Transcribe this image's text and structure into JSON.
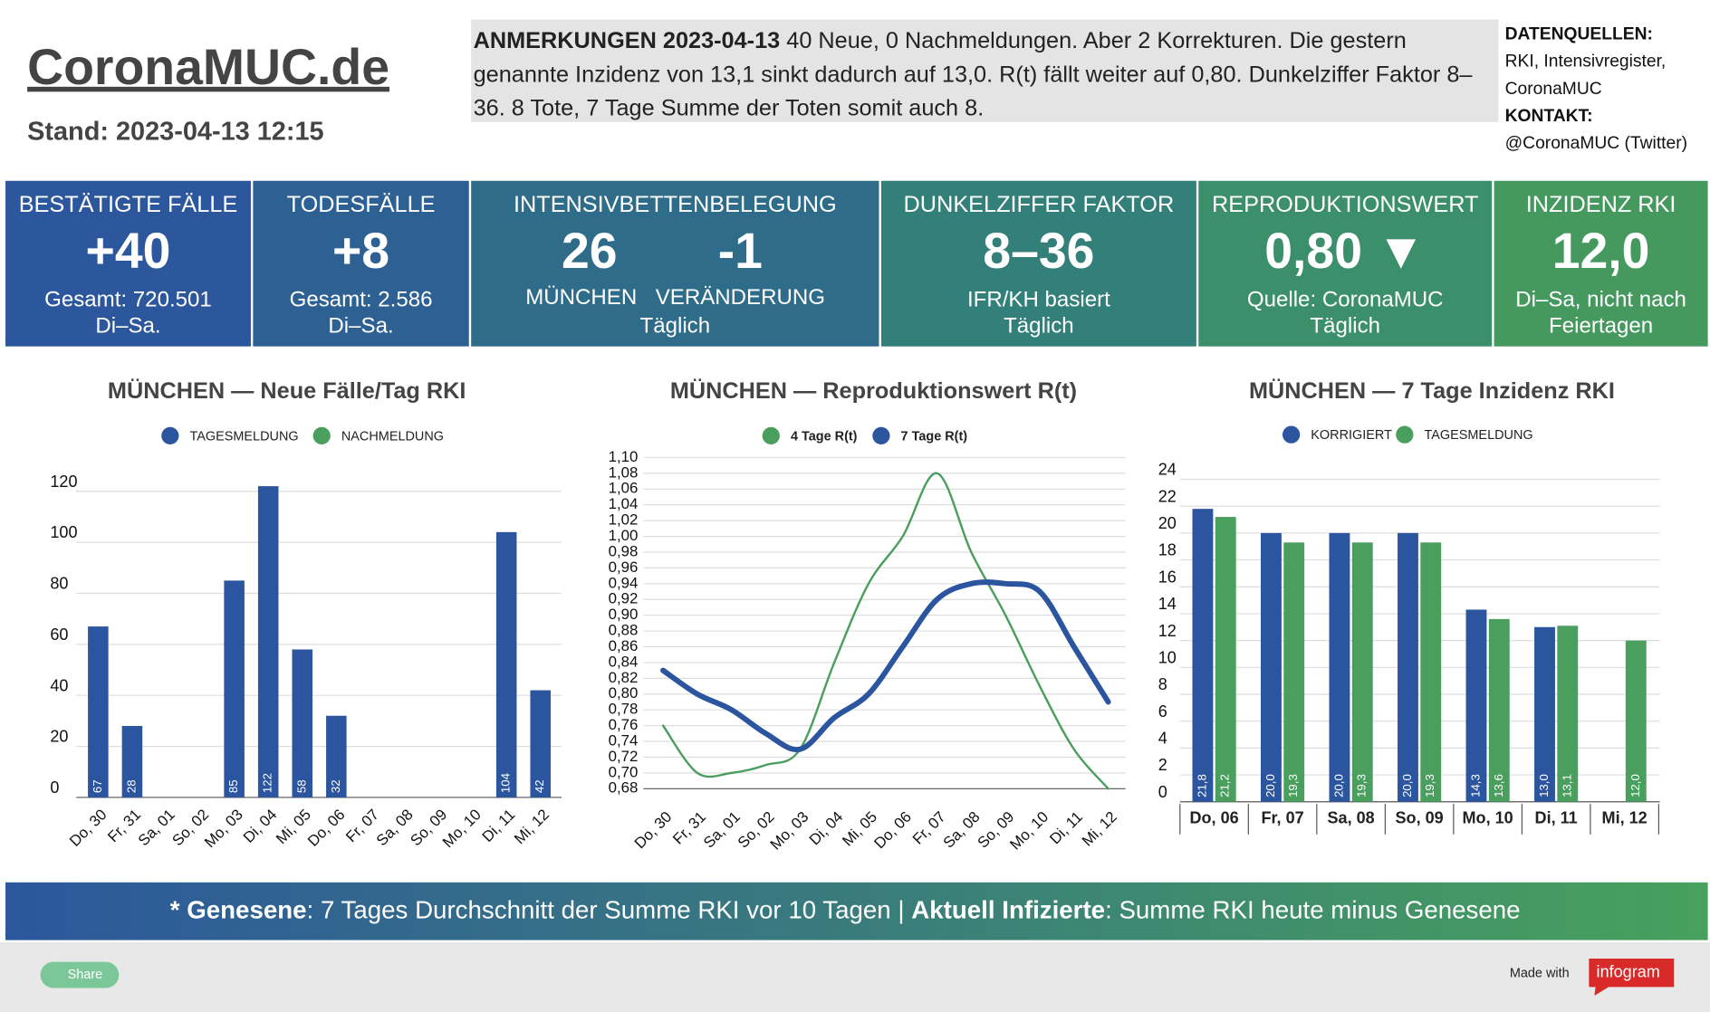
{
  "header": {
    "title": "CoronaMUC.de",
    "stand": "Stand: 2023-04-13 12:15"
  },
  "notes": {
    "label": "ANMERKUNGEN 2023-04-13",
    "text": "40 Neue, 0 Nachmeldungen. Aber 2 Korrekturen. Die gestern genannte Inzidenz von 13,1 sinkt dadurch auf 13,0. R(t) fällt weiter auf 0,80. Dunkelziffer Faktor 8–36. 8 Tote, 7 Tage Summe der Toten somit auch 8."
  },
  "sources": {
    "label": "DATENQUELLEN:",
    "lines": [
      "RKI, Intensivregister,",
      "CoronaMUC"
    ],
    "contact_label": "KONTAKT:",
    "contact": "@CoronaMUC (Twitter)"
  },
  "kpis": [
    {
      "title": "BESTÄTIGTE FÄLLE",
      "values": [
        "+40"
      ],
      "lines": [
        "Gesamt: 720.501",
        "Di–Sa."
      ]
    },
    {
      "title": "TODESFÄLLE",
      "values": [
        "+8"
      ],
      "lines": [
        "Gesamt: 2.586",
        "Di–Sa."
      ]
    },
    {
      "title": "INTENSIVBETTENBELEGUNG",
      "values": [
        "26",
        "-1"
      ],
      "labels": [
        "MÜNCHEN",
        "VERÄNDERUNG"
      ],
      "lines": [
        "Täglich"
      ]
    },
    {
      "title": "DUNKELZIFFER FAKTOR",
      "values": [
        "8–36"
      ],
      "lines": [
        "IFR/KH basiert",
        "Täglich"
      ]
    },
    {
      "title": "REPRODUKTIONSWERT",
      "values": [
        "0,80 ▼"
      ],
      "lines": [
        "Quelle: CoronaMUC",
        "Täglich"
      ]
    },
    {
      "title": "INZIDENZ RKI",
      "values": [
        "12,0"
      ],
      "lines": [
        "Di–Sa, nicht nach",
        "Feiertagen"
      ]
    }
  ],
  "chart_data": [
    {
      "type": "bar",
      "barmode": "stack",
      "title": "MÜNCHEN — Neue Fälle/Tag RKI",
      "grid": true,
      "data_labels": true,
      "categories": [
        "Do, 30",
        "Fr, 31",
        "Sa, 01",
        "So, 02",
        "Mo, 03",
        "Di, 04",
        "Mi, 05",
        "Do, 06",
        "Fr, 07",
        "Sa, 08",
        "So, 09",
        "Mo, 10",
        "Di, 11",
        "Mi, 12"
      ],
      "series": [
        {
          "name": "TAGESMELDUNG",
          "color": "#2c55a0",
          "values": [
            67,
            28,
            null,
            null,
            85,
            122,
            58,
            32,
            null,
            null,
            null,
            null,
            104,
            42
          ]
        },
        {
          "name": "NACHMELDUNG",
          "color": "#4a9e5e",
          "values": [
            0,
            0,
            0,
            0,
            0,
            0,
            0,
            0,
            0,
            0,
            0,
            0,
            0,
            0
          ]
        }
      ],
      "ylim": [
        0,
        120
      ],
      "yticks": [
        0,
        20,
        40,
        60,
        80,
        100,
        120
      ]
    },
    {
      "type": "line",
      "title": "MÜNCHEN — Reproduktionswert R(t)",
      "grid": true,
      "categories": [
        "Do, 30",
        "Fr, 31",
        "Sa, 01",
        "So, 02",
        "Mo, 03",
        "Di, 04",
        "Mi, 05",
        "Do, 06",
        "Fr, 07",
        "Sa, 08",
        "So, 09",
        "Mo, 10",
        "Di, 11",
        "Mi, 12"
      ],
      "series": [
        {
          "name": "4 Tage R(t)",
          "color": "#4a9e5e",
          "width": 2,
          "values": [
            0.76,
            0.7,
            0.7,
            0.71,
            0.73,
            0.84,
            0.94,
            1.0,
            1.08,
            0.98,
            0.9,
            0.81,
            0.73,
            0.68
          ]
        },
        {
          "name": "7 Tage R(t)",
          "color": "#2c55a0",
          "width": 5,
          "values": [
            0.83,
            0.8,
            0.78,
            0.75,
            0.73,
            0.77,
            0.8,
            0.86,
            0.92,
            0.94,
            0.94,
            0.93,
            0.86,
            0.79
          ]
        }
      ],
      "ylim": [
        0.68,
        1.1
      ],
      "yticks": [
        {
          "value": 0.68,
          "label": "0,68"
        },
        {
          "value": 0.7,
          "label": "0,70"
        },
        {
          "value": 0.72,
          "label": "0,72"
        },
        {
          "value": 0.74,
          "label": "0,74"
        },
        {
          "value": 0.76,
          "label": "0,76"
        },
        {
          "value": 0.78,
          "label": "0,78"
        },
        {
          "value": 0.8,
          "label": "0,80"
        },
        {
          "value": 0.82,
          "label": "0,82"
        },
        {
          "value": 0.84,
          "label": "0,84"
        },
        {
          "value": 0.86,
          "label": "0,86"
        },
        {
          "value": 0.88,
          "label": "0,88"
        },
        {
          "value": 0.9,
          "label": "0,90"
        },
        {
          "value": 0.92,
          "label": "0,92"
        },
        {
          "value": 0.94,
          "label": "0,94"
        },
        {
          "value": 0.96,
          "label": "0,96"
        },
        {
          "value": 0.98,
          "label": "0,98"
        },
        {
          "value": 1.0,
          "label": "1,00"
        },
        {
          "value": 1.02,
          "label": "1,02"
        },
        {
          "value": 1.04,
          "label": "1,04"
        },
        {
          "value": 1.06,
          "label": "1,06"
        },
        {
          "value": 1.08,
          "label": "1,08"
        },
        {
          "value": 1.1,
          "label": "1,10"
        }
      ]
    },
    {
      "type": "bar",
      "barmode": "group",
      "title": "MÜNCHEN — 7 Tage Inzidenz RKI",
      "grid": true,
      "data_labels": true,
      "categories": [
        "Do, 06",
        "Fr, 07",
        "Sa, 08",
        "So, 09",
        "Mo, 10",
        "Di, 11",
        "Mi, 12"
      ],
      "series": [
        {
          "name": "KORRIGIERT",
          "color": "#2c55a0",
          "values": [
            21.8,
            20.0,
            20.0,
            20.0,
            14.3,
            13.0,
            null
          ],
          "value_labels": [
            "21,8",
            "20,0",
            "20,0",
            "20,0",
            "14,3",
            "13,0",
            null
          ]
        },
        {
          "name": "TAGESMELDUNG",
          "color": "#4a9e5e",
          "values": [
            21.2,
            19.3,
            19.3,
            19.3,
            13.6,
            13.1,
            12.0
          ],
          "value_labels": [
            "21,2",
            "19,3",
            "19,3",
            "19,3",
            "13,6",
            "13,1",
            "12,0"
          ]
        }
      ],
      "ylim": [
        0,
        24
      ],
      "yticks": [
        0,
        2,
        4,
        6,
        8,
        10,
        12,
        14,
        16,
        18,
        20,
        22,
        24
      ]
    }
  ],
  "footer": {
    "label1": "* Genesene",
    "text1": ":  7 Tages Durchschnitt der Summe RKI vor 10 Tagen | ",
    "label2": "Aktuell Infizierte",
    "text2": ": Summe RKI heute minus Genesene"
  },
  "bottom": {
    "share": "Share",
    "made_with": "Made with",
    "brand": "infogram"
  }
}
